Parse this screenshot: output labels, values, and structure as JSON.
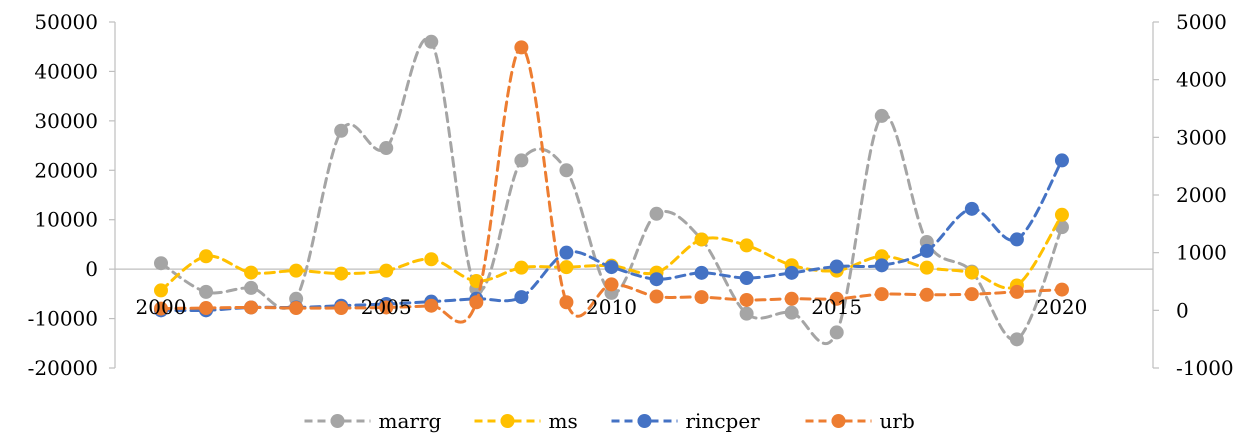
{
  "chart_data": {
    "type": "line",
    "title": "",
    "xlabel": "",
    "ylabel": "",
    "x": [
      2000,
      2001,
      2002,
      2003,
      2004,
      2005,
      2006,
      2007,
      2008,
      2009,
      2010,
      2011,
      2012,
      2013,
      2014,
      2015,
      2016,
      2017,
      2018,
      2019,
      2020,
      2021,
      2022
    ],
    "x_tick_labels": [
      "2000",
      "2005",
      "2010",
      "2015",
      "2020"
    ],
    "x_tick_values": [
      2000,
      2005,
      2010,
      2015,
      2020
    ],
    "y_left": {
      "ylim": [
        -20000,
        50000
      ],
      "ticks": [
        "-20000",
        "-10000",
        "0",
        "10000",
        "20000",
        "30000",
        "40000",
        "50000"
      ]
    },
    "y_right": {
      "ylim": [
        -1000,
        5000
      ],
      "ticks": [
        "-1000",
        "0",
        "1000",
        "2000",
        "3000",
        "4000",
        "5000"
      ]
    },
    "grid": false,
    "legend_position": "bottom",
    "series": [
      {
        "name": "marrg",
        "axis": "left",
        "color": "#a5a5a5",
        "x": [
          2000,
          2001,
          2002,
          2003,
          2004,
          2005,
          2006,
          2007,
          2008,
          2009,
          2010,
          2011,
          2012,
          2013,
          2014,
          2015,
          2016,
          2017,
          2018,
          2019,
          2020,
          2021
        ],
        "values": [
          1200,
          -4600,
          -3800,
          -6000,
          28000,
          24500,
          46000,
          -4000,
          22000,
          20000,
          -4800,
          11200,
          6000,
          -9000,
          -8800,
          -12800,
          31000,
          5500,
          -500,
          -14200,
          8500,
          null
        ]
      },
      {
        "name": "ms",
        "axis": "left",
        "color": "#ffc000",
        "x": [
          2000,
          2001,
          2002,
          2003,
          2004,
          2005,
          2006,
          2007,
          2008,
          2009,
          2010,
          2011,
          2012,
          2013,
          2014,
          2015,
          2016,
          2017,
          2018,
          2019,
          2020,
          2021
        ],
        "values": [
          -4300,
          2600,
          -700,
          -300,
          -900,
          -300,
          2000,
          -2400,
          300,
          400,
          700,
          -700,
          6000,
          4800,
          800,
          -300,
          2600,
          300,
          -700,
          -3300,
          11000,
          null
        ]
      },
      {
        "name": "rincper",
        "axis": "right",
        "color": "#4472c4",
        "x": [
          2000,
          2001,
          2002,
          2003,
          2004,
          2005,
          2006,
          2007,
          2008,
          2009,
          2010,
          2011,
          2012,
          2013,
          2014,
          2015,
          2016,
          2017,
          2018,
          2019,
          2020,
          2021
        ],
        "values": [
          0,
          0,
          50,
          50,
          80,
          110,
          150,
          200,
          230,
          1000,
          750,
          540,
          650,
          560,
          650,
          760,
          780,
          1030,
          1760,
          1230,
          2600,
          null
        ]
      },
      {
        "name": "urb",
        "axis": "right",
        "color": "#ed7d31",
        "x": [
          2000,
          2001,
          2002,
          2003,
          2004,
          2005,
          2006,
          2007,
          2008,
          2009,
          2010,
          2011,
          2012,
          2013,
          2014,
          2015,
          2016,
          2017,
          2018,
          2019,
          2020,
          2021
        ],
        "values": [
          30,
          40,
          50,
          40,
          40,
          50,
          80,
          140,
          4560,
          140,
          450,
          240,
          230,
          180,
          200,
          200,
          280,
          270,
          280,
          320,
          360,
          null
        ]
      }
    ]
  }
}
